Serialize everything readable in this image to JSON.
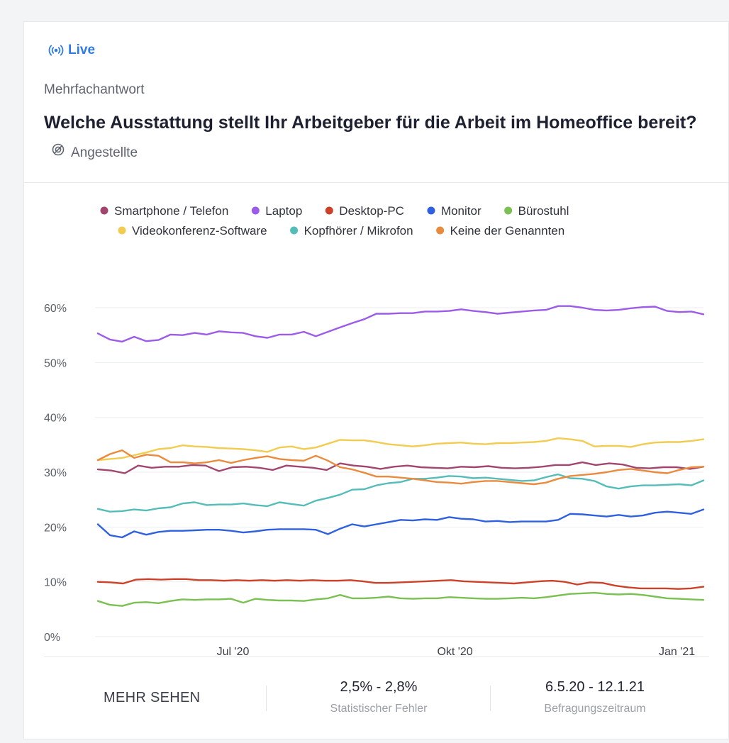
{
  "header": {
    "live_label": "Live",
    "question_type": "Mehrfachantwort",
    "question": "Welche Ausstattung stellt Ihr Arbeitgeber für die Arbeit im Homeof­fice bereit?",
    "audience": "Angestellte"
  },
  "colors": {
    "accent": "#2f7be5"
  },
  "footer": {
    "more_label": "MEHR SEHEN",
    "error_value": "2,5% - 2,8%",
    "error_label": "Statistischer Fehler",
    "period_value": "6.5.20 - 12.1.21",
    "period_label": "Befragungszeitraum"
  },
  "chart_data": {
    "type": "line",
    "x_ticks": [
      "Jul '20",
      "Okt '20",
      "Jan '21"
    ],
    "x_tick_dates": [
      "2020-07-01",
      "2020-10-01",
      "2021-01-01"
    ],
    "x_range": [
      "2020-05-06",
      "2021-01-12"
    ],
    "y_ticks": [
      "0%",
      "10%",
      "20%",
      "30%",
      "40%",
      "50%",
      "60%"
    ],
    "ylim": [
      0,
      60
    ],
    "grid": true,
    "legend_position": "top",
    "series": [
      {
        "name": "Smartphone / Telefon",
        "color": "#a24670",
        "values": [
          30.5,
          30.3,
          29.8,
          31.2,
          30.8,
          31.0,
          31.0,
          31.3,
          31.2,
          30.2,
          30.9,
          31.0,
          30.8,
          30.4,
          31.2,
          31.0,
          30.8,
          30.4,
          31.6,
          31.2,
          31.0,
          30.6,
          31.0,
          31.2,
          30.9,
          30.8,
          30.7,
          31.0,
          30.9,
          31.1,
          30.8,
          30.7,
          30.8,
          31.0,
          31.3,
          31.3,
          31.8,
          31.3,
          31.6,
          31.4,
          30.8,
          30.7,
          30.9,
          30.9,
          30.6,
          31.0
        ]
      },
      {
        "name": "Laptop",
        "color": "#9c5be8",
        "values": [
          55.3,
          54.2,
          53.8,
          54.7,
          53.9,
          54.1,
          55.1,
          55.0,
          55.4,
          55.1,
          55.7,
          55.5,
          55.4,
          54.8,
          54.5,
          55.1,
          55.1,
          55.6,
          54.8,
          55.6,
          56.4,
          57.2,
          57.9,
          58.9,
          58.9,
          59.0,
          59.0,
          59.3,
          59.3,
          59.4,
          59.7,
          59.4,
          59.2,
          58.9,
          59.1,
          59.3,
          59.5,
          59.6,
          60.3,
          60.3,
          60.0,
          59.6,
          59.5,
          59.6,
          59.9,
          60.1,
          60.2,
          59.4,
          59.2,
          59.3,
          58.8
        ]
      },
      {
        "name": "Desktop-PC",
        "color": "#cc4127",
        "values": [
          10.0,
          9.9,
          9.7,
          10.4,
          10.5,
          10.4,
          10.5,
          10.5,
          10.3,
          10.3,
          10.2,
          10.3,
          10.2,
          10.3,
          10.2,
          10.3,
          10.2,
          10.3,
          10.2,
          10.2,
          10.3,
          10.1,
          9.8,
          9.8,
          9.9,
          10.0,
          10.1,
          10.2,
          10.3,
          10.1,
          10.0,
          9.9,
          9.8,
          9.7,
          9.9,
          10.1,
          10.2,
          10.0,
          9.5,
          9.9,
          9.8,
          9.3,
          9.0,
          8.8,
          8.8,
          8.8,
          8.7,
          8.8,
          9.1
        ]
      },
      {
        "name": "Monitor",
        "color": "#2e60e0",
        "values": [
          20.5,
          18.5,
          18.1,
          19.2,
          18.6,
          19.1,
          19.3,
          19.3,
          19.4,
          19.5,
          19.5,
          19.3,
          19.0,
          19.2,
          19.5,
          19.6,
          19.6,
          19.6,
          19.5,
          18.7,
          19.7,
          20.5,
          20.1,
          20.5,
          20.9,
          21.3,
          21.2,
          21.4,
          21.3,
          21.8,
          21.5,
          21.4,
          21.0,
          21.1,
          20.9,
          21.0,
          21.0,
          21.0,
          21.3,
          22.4,
          22.3,
          22.1,
          21.9,
          22.2,
          21.9,
          22.1,
          22.6,
          22.8,
          22.6,
          22.4,
          23.2
        ]
      },
      {
        "name": "Bürostuhl",
        "color": "#7ac052",
        "values": [
          6.5,
          5.8,
          5.6,
          6.2,
          6.3,
          6.1,
          6.5,
          6.8,
          6.7,
          6.8,
          6.8,
          6.9,
          6.2,
          6.9,
          6.7,
          6.6,
          6.6,
          6.5,
          6.8,
          7.0,
          7.6,
          7.0,
          7.0,
          7.1,
          7.3,
          7.0,
          6.9,
          7.0,
          7.0,
          7.2,
          7.1,
          7.0,
          6.9,
          6.9,
          7.0,
          7.1,
          7.0,
          7.2,
          7.5,
          7.8,
          7.9,
          8.0,
          7.8,
          7.7,
          7.8,
          7.6,
          7.3,
          7.0,
          6.9,
          6.8,
          6.7
        ]
      },
      {
        "name": "Videokonferenz-Software",
        "color": "#f2cc50",
        "values": [
          32.2,
          32.4,
          32.6,
          33.1,
          33.6,
          34.2,
          34.4,
          34.9,
          34.7,
          34.6,
          34.4,
          34.3,
          34.2,
          34.0,
          33.7,
          34.5,
          34.7,
          34.2,
          34.5,
          35.2,
          35.9,
          35.8,
          35.8,
          35.5,
          35.1,
          34.9,
          34.7,
          34.9,
          35.2,
          35.3,
          35.4,
          35.2,
          35.1,
          35.3,
          35.3,
          35.4,
          35.5,
          35.7,
          36.2,
          36.0,
          35.7,
          34.7,
          34.8,
          34.8,
          34.6,
          35.1,
          35.4,
          35.5,
          35.5,
          35.7,
          36.0
        ]
      },
      {
        "name": "Kopfhörer / Mikrofon",
        "color": "#54bdb9",
        "values": [
          23.3,
          22.8,
          22.9,
          23.2,
          23.0,
          23.4,
          23.6,
          24.3,
          24.5,
          24.0,
          24.1,
          24.1,
          24.3,
          24.0,
          23.8,
          24.5,
          24.2,
          23.9,
          24.8,
          25.3,
          25.9,
          26.8,
          26.9,
          27.6,
          28.0,
          28.2,
          28.8,
          28.8,
          29.0,
          29.3,
          29.2,
          28.9,
          29.0,
          28.8,
          28.6,
          28.4,
          28.5,
          29.1,
          29.6,
          28.9,
          28.8,
          28.4,
          27.4,
          27.0,
          27.4,
          27.6,
          27.6,
          27.7,
          27.8,
          27.6,
          28.5
        ]
      },
      {
        "name": "Keine der Genannten",
        "color": "#ea8a3d",
        "values": [
          32.2,
          33.3,
          34.0,
          32.6,
          33.2,
          33.0,
          31.8,
          31.8,
          31.6,
          31.8,
          32.2,
          31.7,
          32.2,
          32.6,
          32.9,
          32.4,
          32.2,
          32.1,
          33.0,
          32.1,
          30.9,
          30.5,
          29.9,
          29.2,
          29.2,
          29.0,
          28.8,
          28.5,
          28.2,
          28.1,
          27.9,
          28.2,
          28.4,
          28.4,
          28.2,
          28.0,
          27.8,
          28.1,
          28.8,
          29.3,
          29.5,
          29.7,
          30.0,
          30.4,
          30.6,
          30.3,
          30.0,
          29.8,
          30.4,
          30.9,
          31.0
        ]
      }
    ]
  }
}
